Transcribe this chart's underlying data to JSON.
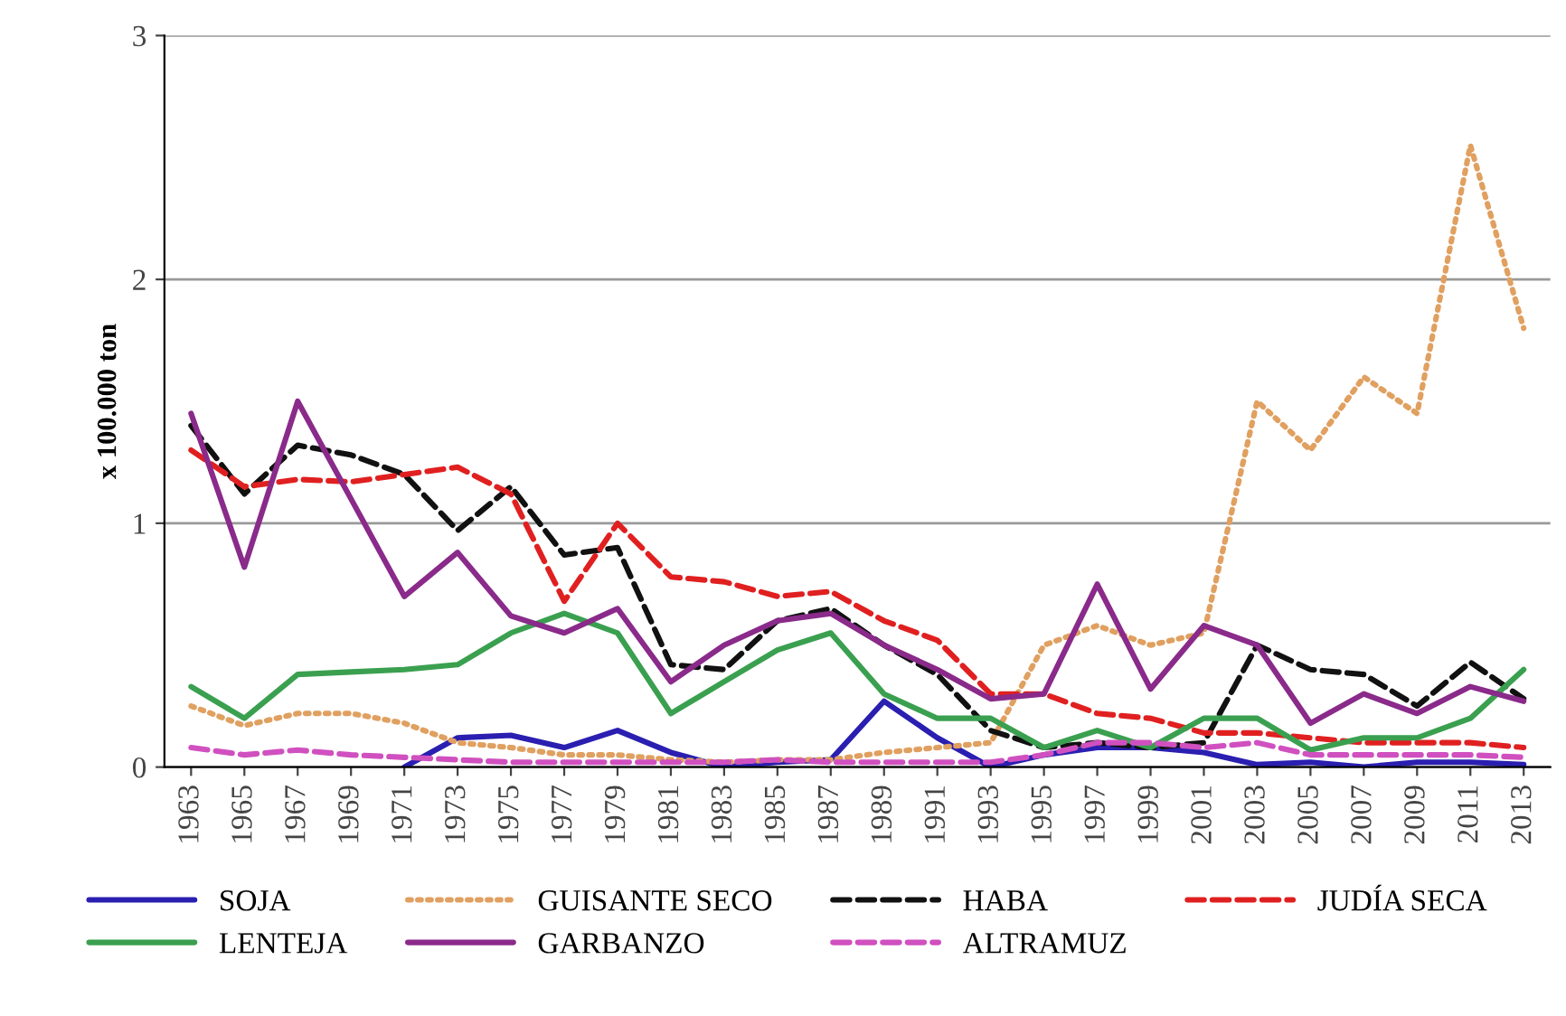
{
  "chart_data": {
    "type": "line",
    "ylabel": "x 100.000 ton",
    "categories": [
      "1963",
      "1965",
      "1967",
      "1969",
      "1971",
      "1973",
      "1975",
      "1977",
      "1979",
      "1981",
      "1983",
      "1985",
      "1987",
      "1989",
      "1991",
      "1993",
      "1995",
      "1997",
      "1999",
      "2001",
      "2003",
      "2005",
      "2007",
      "2009",
      "2011",
      "2013"
    ],
    "series": [
      {
        "name": "SOJA",
        "color": "#2a1fb0",
        "line_style": "solid",
        "values": [
          null,
          null,
          null,
          null,
          0.0,
          0.12,
          0.13,
          0.08,
          0.15,
          0.06,
          0.0,
          0.02,
          0.03,
          0.27,
          0.12,
          0.0,
          0.05,
          0.08,
          0.08,
          0.06,
          0.01,
          0.02,
          0.0,
          0.02,
          0.02,
          0.01
        ]
      },
      {
        "name": "GUISANTE SECO",
        "color": "#e0a060",
        "line_style": "dotted",
        "values": [
          0.25,
          0.17,
          0.22,
          0.22,
          0.18,
          0.1,
          0.08,
          0.05,
          0.05,
          0.03,
          0.02,
          0.03,
          0.03,
          0.06,
          0.08,
          0.1,
          0.5,
          0.58,
          0.5,
          0.55,
          1.5,
          1.3,
          1.6,
          1.45,
          2.55,
          1.8
        ]
      },
      {
        "name": "HABA",
        "color": "#111111",
        "line_style": "dashed",
        "values": [
          1.4,
          1.12,
          1.32,
          1.28,
          1.2,
          0.97,
          1.15,
          0.87,
          0.9,
          0.42,
          0.4,
          0.6,
          0.65,
          0.5,
          0.38,
          0.15,
          0.08,
          0.1,
          0.08,
          0.1,
          0.5,
          0.4,
          0.38,
          0.25,
          0.43,
          0.28
        ]
      },
      {
        "name": "JUDÍA SECA",
        "color": "#e02020",
        "line_style": "dashed",
        "values": [
          1.3,
          1.15,
          1.18,
          1.17,
          1.2,
          1.23,
          1.12,
          0.68,
          1.0,
          0.78,
          0.76,
          0.7,
          0.72,
          0.6,
          0.52,
          0.3,
          0.3,
          0.22,
          0.2,
          0.14,
          0.14,
          0.12,
          0.1,
          0.1,
          0.1,
          0.08
        ]
      },
      {
        "name": "LENTEJA",
        "color": "#3aa050",
        "line_style": "solid",
        "values": [
          0.33,
          0.2,
          0.38,
          0.39,
          0.4,
          0.42,
          0.55,
          0.63,
          0.55,
          0.22,
          0.35,
          0.48,
          0.55,
          0.3,
          0.2,
          0.2,
          0.08,
          0.15,
          0.08,
          0.2,
          0.2,
          0.07,
          0.12,
          0.12,
          0.2,
          0.4
        ]
      },
      {
        "name": "GARBANZO",
        "color": "#8a2a8a",
        "line_style": "solid",
        "values": [
          1.45,
          0.82,
          1.5,
          1.1,
          0.7,
          0.88,
          0.62,
          0.55,
          0.65,
          0.35,
          0.5,
          0.6,
          0.63,
          0.5,
          0.4,
          0.28,
          0.3,
          0.75,
          0.32,
          0.58,
          0.5,
          0.18,
          0.3,
          0.22,
          0.33,
          0.27
        ]
      },
      {
        "name": "ALTRAMUZ",
        "color": "#d050c0",
        "line_style": "dashed",
        "values": [
          0.08,
          0.05,
          0.07,
          0.05,
          0.04,
          0.03,
          0.02,
          0.02,
          0.02,
          0.02,
          0.02,
          0.03,
          0.02,
          0.02,
          0.02,
          0.02,
          0.05,
          0.1,
          0.1,
          0.08,
          0.1,
          0.05,
          0.05,
          0.05,
          0.05,
          0.04
        ]
      }
    ],
    "ylim": [
      0,
      3
    ],
    "yticks": [
      0,
      1,
      2,
      3
    ],
    "grid": "y",
    "legend": "bottom"
  }
}
